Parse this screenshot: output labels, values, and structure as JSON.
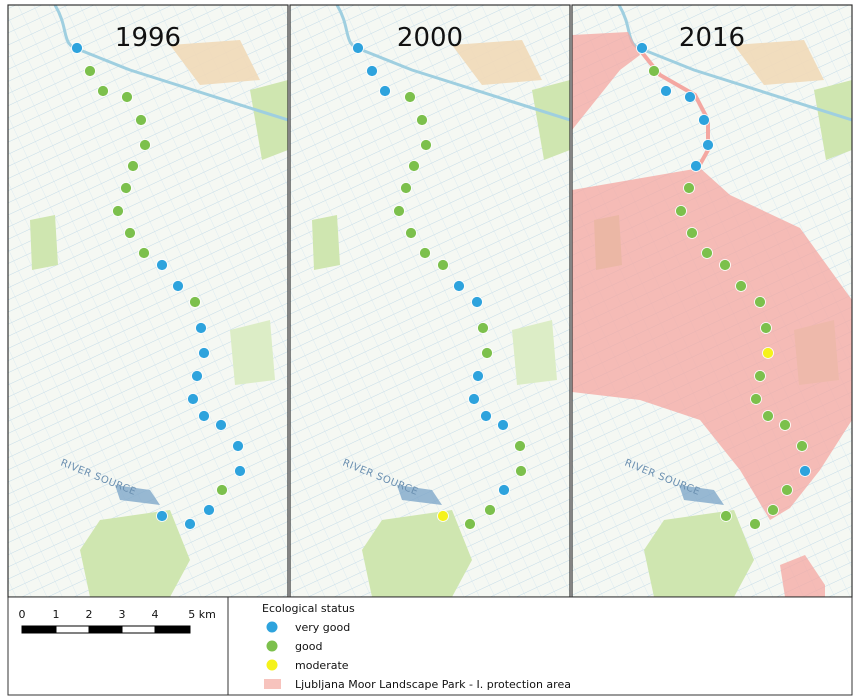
{
  "panels": [
    {
      "year": "1996",
      "river_label": "RIVER SOURCE"
    },
    {
      "year": "2000",
      "river_label": "RIVER SOURCE"
    },
    {
      "year": "2016",
      "river_label": "RIVER SOURCE"
    }
  ],
  "scale_bar": {
    "labels": [
      "0",
      "1",
      "2",
      "3",
      "4",
      "5 km"
    ]
  },
  "legend": {
    "title": "Ecological status",
    "items": [
      "very good",
      "good",
      "moderate",
      "Ljubljana Moor Landscape Park - I. protection area"
    ]
  }
}
